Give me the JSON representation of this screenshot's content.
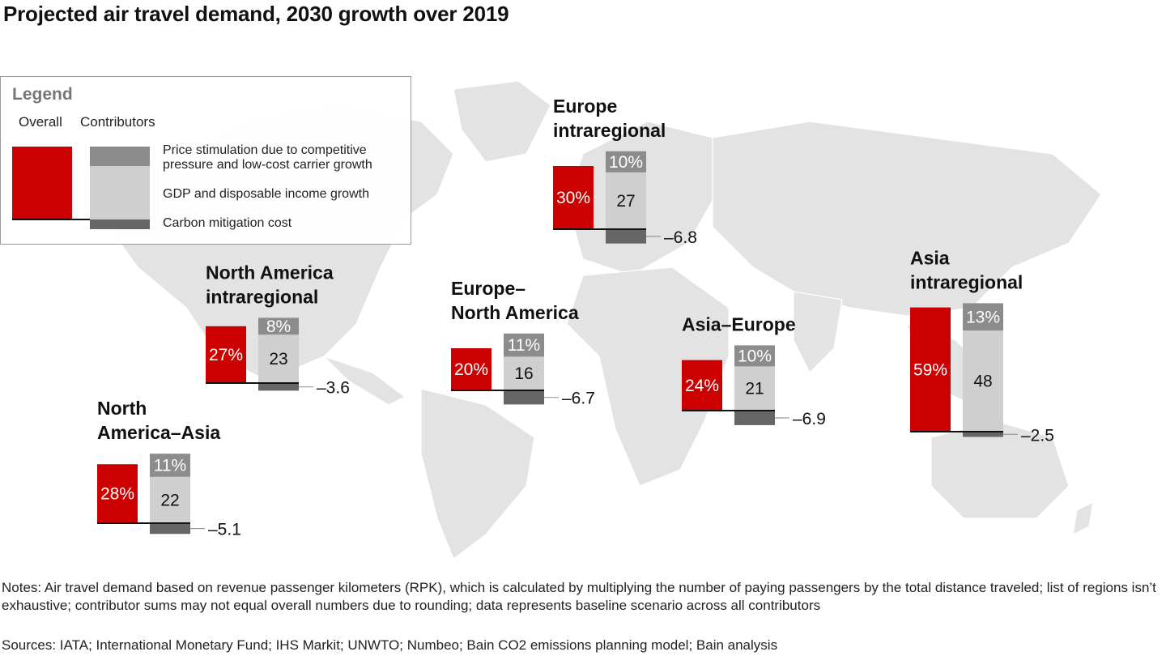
{
  "title": "Projected air travel demand, 2030 growth over 2019",
  "colors": {
    "overall": "#cc0000",
    "price": "#8c8c8c",
    "gdp": "#cfcfcf",
    "carbon": "#666666",
    "map": "#e3e3e3"
  },
  "legend": {
    "title": "Legend",
    "overall_label": "Overall",
    "contributors_label": "Contributors",
    "price_label_1": "Price stimulation due to competitive",
    "price_label_2": "pressure and low-cost carrier growth",
    "gdp_label": "GDP and disposable income growth",
    "carbon_label": "Carbon mitigation cost"
  },
  "chart_data": {
    "type": "bar",
    "unit": "%",
    "series_names": [
      "Overall",
      "Price stimulation due to competitive pressure and low-cost carrier growth",
      "GDP and disposable income growth",
      "Carbon mitigation cost"
    ],
    "regions": [
      {
        "name_lines": [
          "Europe",
          "intraregional"
        ],
        "overall": 30,
        "overall_label": "30%",
        "price": 10,
        "price_label": "10%",
        "gdp": 27,
        "gdp_label": "27",
        "carbon": -6.8,
        "carbon_label": "–6.8"
      },
      {
        "name_lines": [
          "North America",
          "intraregional"
        ],
        "overall": 27,
        "overall_label": "27%",
        "price": 8,
        "price_label": "8%",
        "gdp": 23,
        "gdp_label": "23",
        "carbon": -3.6,
        "carbon_label": "–3.6"
      },
      {
        "name_lines": [
          "Europe–",
          "North America"
        ],
        "overall": 20,
        "overall_label": "20%",
        "price": 11,
        "price_label": "11%",
        "gdp": 16,
        "gdp_label": "16",
        "carbon": -6.7,
        "carbon_label": "–6.7"
      },
      {
        "name_lines": [
          "Asia–Europe"
        ],
        "overall": 24,
        "overall_label": "24%",
        "price": 10,
        "price_label": "10%",
        "gdp": 21,
        "gdp_label": "21",
        "carbon": -6.9,
        "carbon_label": "–6.9"
      },
      {
        "name_lines": [
          "Asia",
          "intraregional"
        ],
        "overall": 59,
        "overall_label": "59%",
        "price": 13,
        "price_label": "13%",
        "gdp": 48,
        "gdp_label": "48",
        "carbon": -2.5,
        "carbon_label": "–2.5"
      },
      {
        "name_lines": [
          "North",
          "America–Asia"
        ],
        "overall": 28,
        "overall_label": "28%",
        "price": 11,
        "price_label": "11%",
        "gdp": 22,
        "gdp_label": "22",
        "carbon": -5.1,
        "carbon_label": "–5.1"
      }
    ]
  },
  "notes": "Notes: Air travel demand based on revenue passenger kilometers (RPK), which is calculated by multiplying the number of paying passengers by the total distance traveled; list of regions isn’t exhaustive; contributor sums may not equal overall numbers due to rounding; data represents baseline scenario across all contributors",
  "sources": "Sources: IATA; International Monetary Fund; IHS Markit; UNWTO; Numbeo; Bain CO2 emissions planning model; Bain analysis"
}
